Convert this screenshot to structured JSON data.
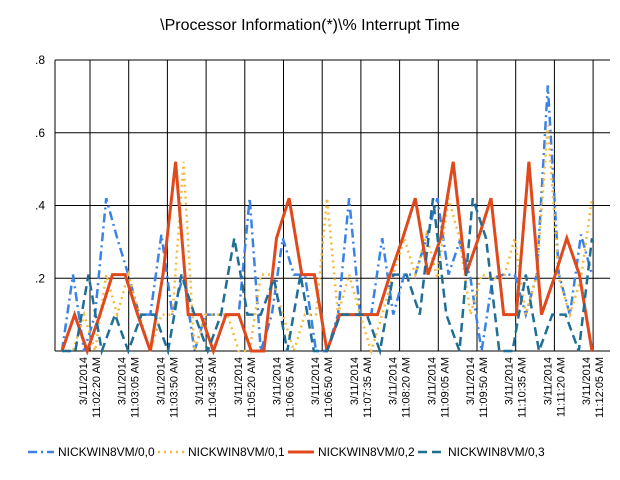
{
  "chart_data": {
    "type": "line",
    "title": "\\Processor Information(*)\\% Interrupt Time",
    "ylim": [
      0,
      0.8
    ],
    "yticks": [
      ".2",
      ".4",
      ".6",
      ".8"
    ],
    "grid": true,
    "legend_position": "bottom",
    "x_tick_labels": [
      {
        "date": "3/11/2014",
        "time": "11:02:20 AM"
      },
      {
        "date": "3/11/2014",
        "time": "11:03:05 AM"
      },
      {
        "date": "3/11/2014",
        "time": "11:03:50 AM"
      },
      {
        "date": "3/11/2014",
        "time": "11:04:35 AM"
      },
      {
        "date": "3/11/2014",
        "time": "11:05:20 AM"
      },
      {
        "date": "3/11/2014",
        "time": "11:06:05 AM"
      },
      {
        "date": "3/11/2014",
        "time": "11:06:50 AM"
      },
      {
        "date": "3/11/2014",
        "time": "11:07:35 AM"
      },
      {
        "date": "3/11/2014",
        "time": "11:08:20 AM"
      },
      {
        "date": "3/11/2014",
        "time": "11:09:05 AM"
      },
      {
        "date": "3/11/2014",
        "time": "11:09:50 AM"
      },
      {
        "date": "3/11/2014",
        "time": "11:10:35 AM"
      },
      {
        "date": "3/11/2014",
        "time": "11:11:20 AM"
      },
      {
        "date": "3/11/2014",
        "time": "11:12:05 AM"
      }
    ],
    "series": [
      {
        "name": "NICKWIN8VM/0,0",
        "color": "#3b82e6",
        "dash": "dashdot",
        "values": [
          0,
          0.21,
          0,
          0.1,
          0.42,
          0.31,
          0.21,
          0.1,
          0.1,
          0.32,
          0.1,
          0.21,
          0,
          0.1,
          0.1,
          0.1,
          0.1,
          0.42,
          0,
          0.1,
          0.31,
          0.21,
          0.21,
          0,
          0,
          0.1,
          0.42,
          0.1,
          0.1,
          0.31,
          0.1,
          0.21,
          0.21,
          0.31,
          0.42,
          0.21,
          0.3,
          0.2,
          0,
          0.2,
          0.21,
          0.21,
          0.1,
          0.21,
          0.73,
          0.21,
          0.1,
          0.32,
          0.21
        ]
      },
      {
        "name": "NICKWIN8VM/0,1",
        "color": "#f5b942",
        "dash": "dot",
        "values": [
          0,
          0,
          0.1,
          0,
          0.21,
          0.1,
          0.21,
          0.1,
          0,
          0.1,
          0.1,
          0.52,
          0,
          0.1,
          0.1,
          0.1,
          0,
          0,
          0.21,
          0.21,
          0.1,
          0,
          0.1,
          0.1,
          0.42,
          0.1,
          0.21,
          0.1,
          0,
          0.1,
          0.21,
          0.31,
          0.21,
          0.32,
          0.2,
          0.42,
          0.31,
          0.1,
          0.21,
          0.2,
          0.2,
          0.31,
          0.1,
          0.21,
          0.62,
          0.2,
          0.1,
          0.2,
          0.42
        ]
      },
      {
        "name": "NICKWIN8VM/0,2",
        "color": "#e0491c",
        "dash": "solid",
        "values": [
          0,
          0.1,
          0,
          0.1,
          0.21,
          0.21,
          0.1,
          0,
          0.21,
          0.52,
          0.1,
          0.1,
          0,
          0.1,
          0.1,
          0,
          0,
          0.31,
          0.42,
          0.21,
          0.21,
          0,
          0.1,
          0.1,
          0.1,
          0.1,
          0.21,
          0.31,
          0.42,
          0.21,
          0.31,
          0.52,
          0.21,
          0.31,
          0.42,
          0.1,
          0.1,
          0.52,
          0.1,
          0.2,
          0.31,
          0.21,
          0
        ]
      },
      {
        "name": "NICKWIN8VM/0,3",
        "color": "#1f6e96",
        "dash": "dash",
        "values": [
          0,
          0,
          0.21,
          0,
          0.1,
          0,
          0.1,
          0.1,
          0,
          0.21,
          0.1,
          0,
          0.1,
          0.31,
          0.1,
          0.1,
          0.2,
          0,
          0.21,
          0,
          0,
          0.1,
          0.1,
          0.1,
          0,
          0.21,
          0.21,
          0.1,
          0.42,
          0.1,
          0,
          0.42,
          0.31,
          0,
          0,
          0.21,
          0,
          0.1,
          0.1,
          0,
          0.31
        ]
      }
    ]
  }
}
